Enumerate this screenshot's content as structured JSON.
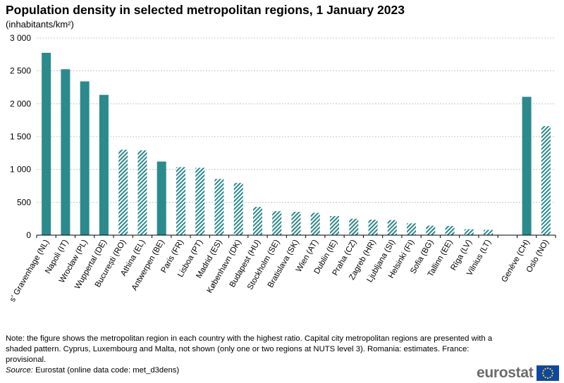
{
  "title": "Population density in selected metropolitan regions, 1 January 2023",
  "subtitle": "(inhabitants/km²)",
  "chart_data": {
    "type": "bar",
    "title": "Population density in selected metropolitan regions, 1 January 2023",
    "ylabel": "(inhabitants/km²)",
    "xlabel": "",
    "ylim": [
      0,
      3000
    ],
    "yticks": [
      0,
      500,
      1000,
      1500,
      2000,
      2500,
      3000
    ],
    "ytick_labels": [
      "0",
      "500",
      "1 000",
      "1 500",
      "2 000",
      "2 500",
      "3 000"
    ],
    "grid": true,
    "colors": {
      "bar": "#2a8a8c",
      "hatch": "#2a8a8c",
      "grid": "#c8c8c8",
      "axis": "#000000"
    },
    "categories": [
      "s' Gravenhage (NL)",
      "Napoli (IT)",
      "Wrocław (PL)",
      "Wuppertal (DE)",
      "București (RO)",
      "Athina (EL)",
      "Antwerpen (BE)",
      "Paris (FR)",
      "Lisboa (PT)",
      "Madrid (ES)",
      "København (DK)",
      "Budapest (HU)",
      "Stockholm (SE)",
      "Bratislava (SK)",
      "Wien (AT)",
      "Dublin (IE)",
      "Praha (CZ)",
      "Zagreb (HR)",
      "Ljubljana (SI)",
      "Helsinki (FI)",
      "Sofia (BG)",
      "Tallinn (EE)",
      "Rīga (LV)",
      "Vilnius (LT)",
      "",
      "Genève (CH)",
      "Oslo (NO)"
    ],
    "values": [
      2775,
      2525,
      2340,
      2135,
      1300,
      1290,
      1120,
      1035,
      1025,
      855,
      795,
      430,
      365,
      355,
      340,
      290,
      250,
      235,
      230,
      180,
      145,
      140,
      90,
      80,
      null,
      2105,
      1660
    ],
    "capital": [
      false,
      false,
      false,
      false,
      true,
      true,
      false,
      true,
      true,
      true,
      true,
      true,
      true,
      true,
      true,
      true,
      true,
      true,
      true,
      true,
      true,
      true,
      true,
      true,
      false,
      false,
      true
    ]
  },
  "footnote": {
    "note": "Note: the figure shows the metropolitan region in each country with the highest ratio. Capital city metropolitan regions are presented with a shaded pattern. Cyprus, Luxembourg and Malta, not shown (only one or two regions at NUTS level 3). Romania: estimates. France: provisional.",
    "source_label": "Source:",
    "source_text": "Eurostat (online data code: met_d3dens)"
  },
  "logo": {
    "text": "eurostat"
  }
}
